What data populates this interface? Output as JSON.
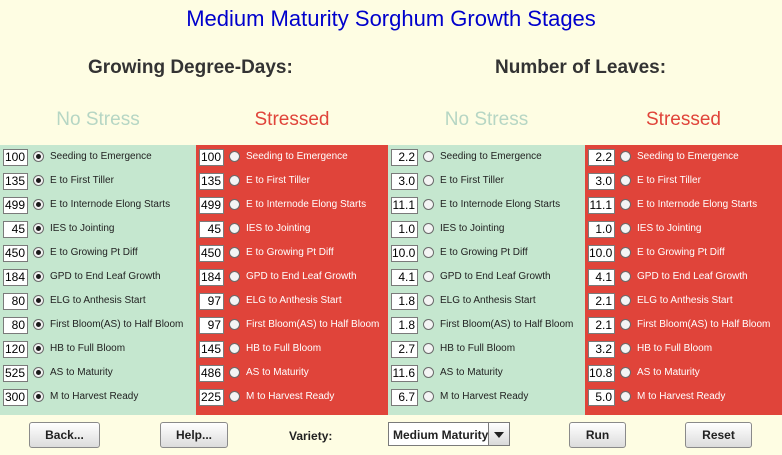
{
  "title": "Medium Maturity Sorghum Growth Stages",
  "headings": {
    "gdd": "Growing Degree-Days:",
    "leaves": "Number of Leaves:"
  },
  "subheads": {
    "no_stress": "No Stress",
    "stressed": "Stressed"
  },
  "stages": [
    "Seeding to Emergence",
    "E to First Tiller",
    "E to Internode Elong Starts",
    "IES to Jointing",
    "E to Growing Pt Diff",
    "GPD to End Leaf Growth",
    "ELG to Anthesis Start",
    "First Bloom(AS) to Half Bloom",
    "HB to Full Bloom",
    "AS to Maturity",
    "M to Harvest Ready"
  ],
  "panels": [
    {
      "name": "gdd-no-stress",
      "values": [
        "100",
        "135",
        "499",
        "45",
        "450",
        "184",
        "80",
        "80",
        "120",
        "525",
        "300"
      ],
      "selected": true
    },
    {
      "name": "gdd-stressed",
      "values": [
        "100",
        "135",
        "499",
        "45",
        "450",
        "184",
        "97",
        "97",
        "145",
        "486",
        "225"
      ],
      "selected": false
    },
    {
      "name": "leaves-no-stress",
      "values": [
        "2.2",
        "3.0",
        "11.1",
        "1.0",
        "10.0",
        "4.1",
        "1.8",
        "1.8",
        "2.7",
        "11.6",
        "6.7"
      ],
      "selected": false
    },
    {
      "name": "leaves-stressed",
      "values": [
        "2.2",
        "3.0",
        "11.1",
        "1.0",
        "10.0",
        "4.1",
        "2.1",
        "2.1",
        "3.2",
        "10.8",
        "5.0"
      ],
      "selected": false
    }
  ],
  "buttons": {
    "back": "Back...",
    "help": "Help...",
    "run": "Run",
    "reset": "Reset"
  },
  "variety": {
    "label": "Variety:",
    "selected": "Medium Maturity"
  },
  "colors": {
    "title": "#0000cc",
    "no_stress_bg": "#c5e7cf",
    "stressed_bg": "#e0443a",
    "page_bg": "#fefde3"
  }
}
